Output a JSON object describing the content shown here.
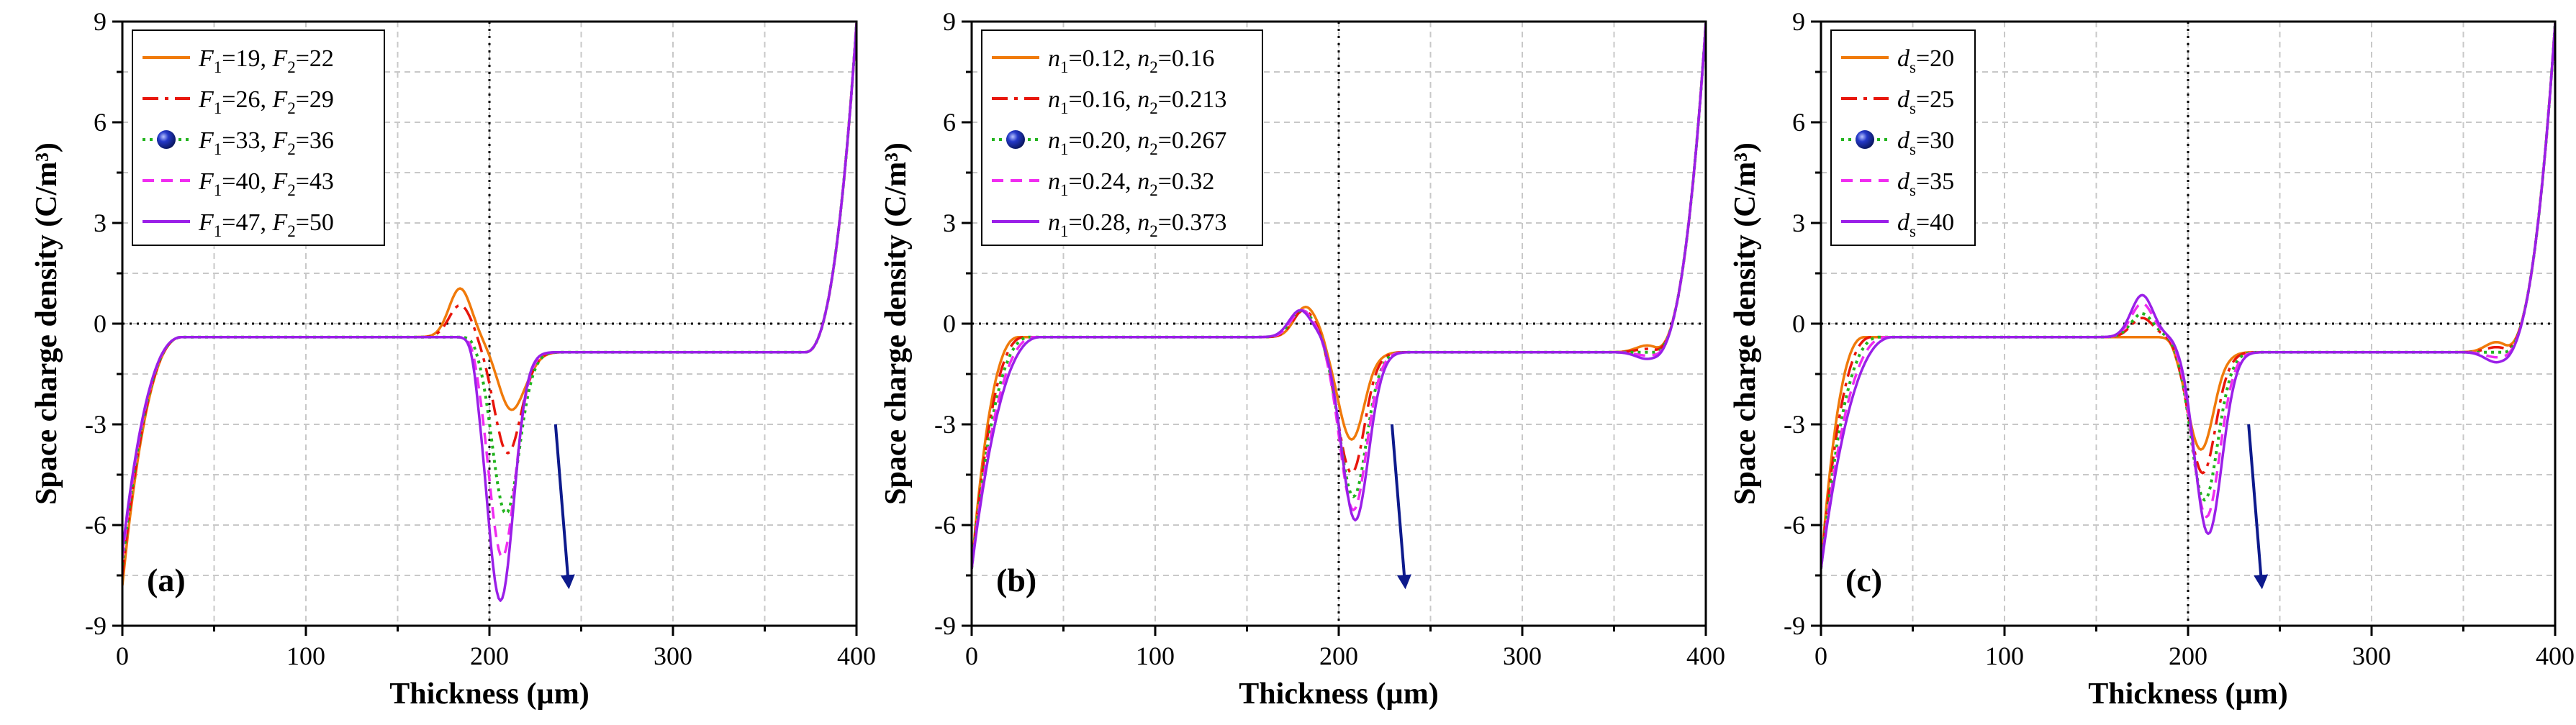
{
  "chart_data": [
    {
      "type": "line",
      "panel_label": "(a)",
      "xlabel": "Thickness (µm)",
      "ylabel": "Space charge density (C/m³)",
      "xlim": [
        0,
        400
      ],
      "ylim": [
        -9,
        9
      ],
      "x_ticks": [
        "0",
        "100",
        "200",
        "300",
        "400"
      ],
      "y_ticks": [
        "-9",
        "-6",
        "-3",
        "0",
        "3",
        "6",
        "9"
      ],
      "legend_position": "top-left",
      "arrow": "points down, near x = 240",
      "series": [
        {
          "name": "F1=19, F2=22",
          "legend_parts": [
            [
              "F",
              "1",
              "=19, "
            ],
            [
              "F",
              "2",
              "=22"
            ]
          ],
          "color": "#f07a0a",
          "dash": "solid",
          "marker": "",
          "shape": {
            "start": -7.8,
            "p1": -0.4,
            "p2": -0.85,
            "rise": 0.0,
            "edge1": 15,
            "peakx": 184,
            "peakh": 1.0,
            "dipx": 212,
            "dipd": -3.0
          }
        },
        {
          "name": "F1=26, F2=29",
          "legend_parts": [
            [
              "F",
              "1",
              "=26, "
            ],
            [
              "F",
              "2",
              "=29"
            ]
          ],
          "color": "#e8160c",
          "dash": "dashdot",
          "marker": "",
          "shape": {
            "start": -7.5,
            "p1": -0.4,
            "p2": -0.85,
            "rise": 0.0,
            "edge1": 15,
            "peakx": 184,
            "peakh": 0.5,
            "dipx": 210,
            "dipd": -4.3
          }
        },
        {
          "name": "F1=33, F2=36",
          "legend_parts": [
            [
              "F",
              "1",
              "=33, "
            ],
            [
              "F",
              "2",
              "=36"
            ]
          ],
          "color": "#22b41e",
          "dash": "dot",
          "marker": "sphere",
          "shape": {
            "start": -7.2,
            "p1": -0.4,
            "p2": -0.85,
            "rise": 0.0,
            "edge1": 15,
            "peakx": 184,
            "peakh": 0.0,
            "dipx": 209,
            "dipd": -6.1
          }
        },
        {
          "name": "F1=40, F2=43",
          "legend_parts": [
            [
              "F",
              "1",
              "=40, "
            ],
            [
              "F",
              "2",
              "=43"
            ]
          ],
          "color": "#f02cf0",
          "dash": "dash",
          "marker": "",
          "shape": {
            "start": -7.0,
            "p1": -0.4,
            "p2": -0.85,
            "rise": 0.0,
            "edge1": 15,
            "peakx": 184,
            "peakh": 0.0,
            "dipx": 207,
            "dipd": -7.4
          }
        },
        {
          "name": "F1=47, F2=50",
          "legend_parts": [
            [
              "F",
              "1",
              "=47, "
            ],
            [
              "F",
              "2",
              "=50"
            ]
          ],
          "color": "#9a1fe8",
          "dash": "solid",
          "marker": "",
          "shape": {
            "start": -6.8,
            "p1": -0.4,
            "p2": -0.85,
            "rise": 0.0,
            "edge1": 15,
            "peakx": 184,
            "peakh": 0.0,
            "dipx": 206,
            "dipd": -8.7
          }
        }
      ]
    },
    {
      "type": "line",
      "panel_label": "(b)",
      "xlabel": "Thickness (µm)",
      "ylabel": "Space charge density (C/m³)",
      "xlim": [
        0,
        400
      ],
      "ylim": [
        -9,
        9
      ],
      "x_ticks": [
        "0",
        "100",
        "200",
        "300",
        "400"
      ],
      "y_ticks": [
        "-9",
        "-6",
        "-3",
        "0",
        "3",
        "6",
        "9"
      ],
      "legend_position": "top-left",
      "arrow": "points down, near x = 233",
      "series": [
        {
          "name": "n1=0.12, n2=0.16",
          "legend_parts": [
            [
              "n",
              "1",
              "=0.12, "
            ],
            [
              "n",
              "2",
              "=0.16"
            ]
          ],
          "color": "#f07a0a",
          "dash": "solid",
          "marker": "",
          "shape": {
            "start": -7.3,
            "p1": -0.4,
            "p2": -0.85,
            "rise": 0.2,
            "edge1": 8,
            "peakx": 182,
            "peakh": 0.45,
            "dipx": 207,
            "dipd": -3.9
          }
        },
        {
          "name": "n1=0.16, n2=0.213",
          "legend_parts": [
            [
              "n",
              "1",
              "=0.16, "
            ],
            [
              "n",
              "2",
              "=0.213"
            ]
          ],
          "color": "#e8160c",
          "dash": "dashdot",
          "marker": "",
          "shape": {
            "start": -7.3,
            "p1": -0.4,
            "p2": -0.85,
            "rise": 0.1,
            "edge1": 11,
            "peakx": 181,
            "peakh": 0.35,
            "dipx": 207,
            "dipd": -4.9
          }
        },
        {
          "name": "n1=0.20, n2=0.267",
          "legend_parts": [
            [
              "n",
              "1",
              "=0.20, "
            ],
            [
              "n",
              "2",
              "=0.267"
            ]
          ],
          "color": "#22b41e",
          "dash": "dot",
          "marker": "sphere",
          "shape": {
            "start": -7.3,
            "p1": -0.4,
            "p2": -0.85,
            "rise": 0.0,
            "edge1": 14,
            "peakx": 180,
            "peakh": 0.35,
            "dipx": 208,
            "dipd": -5.6
          }
        },
        {
          "name": "n1=0.24, n2=0.32",
          "legend_parts": [
            [
              "n",
              "1",
              "=0.24, "
            ],
            [
              "n",
              "2",
              "=0.32"
            ]
          ],
          "color": "#f02cf0",
          "dash": "dash",
          "marker": "",
          "shape": {
            "start": -7.3,
            "p1": -0.4,
            "p2": -0.85,
            "rise": -0.1,
            "edge1": 17,
            "peakx": 180,
            "peakh": 0.35,
            "dipx": 208,
            "dipd": -6.0
          }
        },
        {
          "name": "n1=0.28, n2=0.373",
          "legend_parts": [
            [
              "n",
              "1",
              "=0.28, "
            ],
            [
              "n",
              "2",
              "=0.373"
            ]
          ],
          "color": "#9a1fe8",
          "dash": "solid",
          "marker": "",
          "shape": {
            "start": -7.3,
            "p1": -0.4,
            "p2": -0.85,
            "rise": -0.2,
            "edge1": 20,
            "peakx": 179,
            "peakh": 0.35,
            "dipx": 209,
            "dipd": -6.3
          }
        }
      ]
    },
    {
      "type": "line",
      "panel_label": "(c)",
      "xlabel": "Thickness (µm)",
      "ylabel": "Space charge density (C/m³)",
      "xlim": [
        0,
        400
      ],
      "ylim": [
        -9,
        9
      ],
      "x_ticks": [
        "0",
        "100",
        "200",
        "300",
        "400"
      ],
      "y_ticks": [
        "-9",
        "-6",
        "-3",
        "0",
        "3",
        "6",
        "9"
      ],
      "legend_position": "top-left",
      "arrow": "points down, near x = 237",
      "series": [
        {
          "name": "ds=20",
          "legend_parts": [
            [
              "d",
              "s",
              "=20"
            ]
          ],
          "color": "#f07a0a",
          "dash": "solid",
          "marker": "",
          "shape": {
            "start": -7.3,
            "p1": -0.4,
            "p2": -0.85,
            "rise": 0.3,
            "edge1": 6,
            "peakx": 175,
            "peakh": 0.0,
            "dipx": 207,
            "dipd": -4.2
          }
        },
        {
          "name": "ds=25",
          "legend_parts": [
            [
              "d",
              "s",
              "=25"
            ]
          ],
          "color": "#e8160c",
          "dash": "dashdot",
          "marker": "",
          "shape": {
            "start": -7.3,
            "p1": -0.4,
            "p2": -0.85,
            "rise": 0.15,
            "edge1": 10,
            "peakx": 175,
            "peakh": 0.12,
            "dipx": 208,
            "dipd": -4.9
          }
        },
        {
          "name": "ds=30",
          "legend_parts": [
            [
              "d",
              "s",
              "=30"
            ]
          ],
          "color": "#22b41e",
          "dash": "dot",
          "marker": "sphere",
          "shape": {
            "start": -7.3,
            "p1": -0.4,
            "p2": -0.85,
            "rise": 0.0,
            "edge1": 14,
            "peakx": 175,
            "peakh": 0.25,
            "dipx": 209,
            "dipd": -5.7
          }
        },
        {
          "name": "ds=35",
          "legend_parts": [
            [
              "d",
              "s",
              "=35"
            ]
          ],
          "color": "#f02cf0",
          "dash": "dash",
          "marker": "",
          "shape": {
            "start": -7.3,
            "p1": -0.4,
            "p2": -0.85,
            "rise": -0.15,
            "edge1": 18,
            "peakx": 175,
            "peakh": 0.55,
            "dipx": 210,
            "dipd": -6.2
          }
        },
        {
          "name": "ds=40",
          "legend_parts": [
            [
              "d",
              "s",
              "=40"
            ]
          ],
          "color": "#9a1fe8",
          "dash": "solid",
          "marker": "",
          "shape": {
            "start": -7.3,
            "p1": -0.4,
            "p2": -0.85,
            "rise": -0.3,
            "edge1": 22,
            "peakx": 175,
            "peakh": 0.8,
            "dipx": 211,
            "dipd": -6.7
          }
        }
      ]
    }
  ]
}
